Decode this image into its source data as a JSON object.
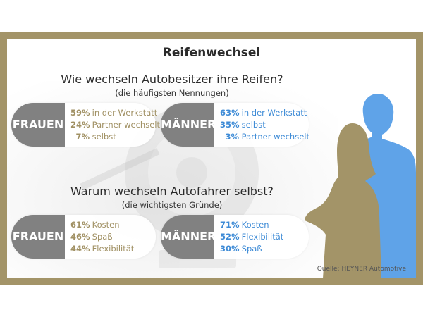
{
  "title": "Reifenwechsel",
  "section1": {
    "heading": "Wie wechseln Autobesitzer ihre Reifen?",
    "subheading": "(die häufigsten Nennungen)",
    "women": {
      "label": "FRAUEN",
      "rows": [
        {
          "value": 59,
          "pct": "59%",
          "text": "in der Werkstatt"
        },
        {
          "value": 24,
          "pct": "24%",
          "text": "Partner wechselt"
        },
        {
          "value": 7,
          "pct": "7%",
          "text": "selbst"
        }
      ]
    },
    "men": {
      "label": "MÄNNER",
      "rows": [
        {
          "value": 63,
          "pct": "63%",
          "text": "in der Werkstatt"
        },
        {
          "value": 35,
          "pct": "35%",
          "text": "selbst"
        },
        {
          "value": 3,
          "pct": "3%",
          "text": "Partner wechselt"
        }
      ]
    }
  },
  "section2": {
    "heading": "Warum wechseln Autofahrer selbst?",
    "subheading": "(die wichtigsten Gründe)",
    "women": {
      "label": "FRAUEN",
      "rows": [
        {
          "value": 61,
          "pct": "61%",
          "text": "Kosten"
        },
        {
          "value": 46,
          "pct": "46%",
          "text": "Spaß"
        },
        {
          "value": 44,
          "pct": "44%",
          "text": "Flexibilität"
        }
      ]
    },
    "men": {
      "label": "MÄNNER",
      "rows": [
        {
          "value": 71,
          "pct": "71%",
          "text": "Kosten"
        },
        {
          "value": 52,
          "pct": "52%",
          "text": "Flexibilität"
        },
        {
          "value": 30,
          "pct": "30%",
          "text": "Spaß"
        }
      ]
    }
  },
  "source": "Quelle: HEYNER Automotive",
  "colors": {
    "frame": "#a39468",
    "women": "#a09063",
    "men": "#3e8bd6",
    "badge": "#818181",
    "woman_silhouette": "#a39468",
    "man_silhouette": "#5fa3e8"
  },
  "chart_data": {
    "type": "table",
    "title": "Reifenwechsel",
    "tables": [
      {
        "question": "Wie wechseln Autobesitzer ihre Reifen?",
        "FRAUEN": {
          "in der Werkstatt": 59,
          "Partner wechselt": 24,
          "selbst": 7
        },
        "MÄNNER": {
          "in der Werkstatt": 63,
          "selbst": 35,
          "Partner wechselt": 3
        }
      },
      {
        "question": "Warum wechseln Autofahrer selbst?",
        "FRAUEN": {
          "Kosten": 61,
          "Spaß": 46,
          "Flexibilität": 44
        },
        "MÄNNER": {
          "Kosten": 71,
          "Flexibilität": 52,
          "Spaß": 30
        }
      }
    ],
    "unit": "%"
  }
}
